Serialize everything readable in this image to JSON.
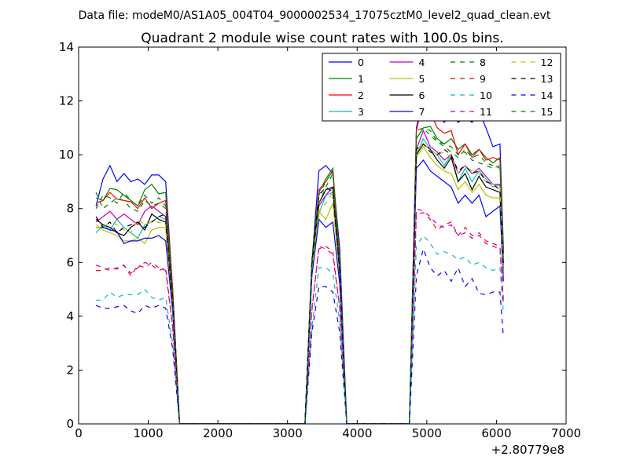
{
  "suptitle": "Data file: modeM0/AS1A05_004T04_9000002534_17075cztM0_level2_quad_clean.evt",
  "chart_data": {
    "type": "line",
    "title": "Quadrant 2 module wise count rates with 100.0s bins.",
    "xlabel": "",
    "ylabel": "",
    "xlim": [
      0,
      7000
    ],
    "ylim": [
      0,
      14
    ],
    "x_offset_label": "+2.80779e8",
    "xticks": [
      "0",
      "1000",
      "2000",
      "3000",
      "4000",
      "5000",
      "6000",
      "7000"
    ],
    "yticks": [
      "0",
      "2",
      "4",
      "6",
      "8",
      "10",
      "12",
      "14"
    ],
    "legend_position": "top-right",
    "legend_columns": 4,
    "x": [
      250,
      350,
      450,
      550,
      650,
      750,
      850,
      950,
      1050,
      1150,
      1250,
      1350,
      1450,
      1550,
      1650,
      1750,
      1850,
      1950,
      2050,
      2150,
      2250,
      2350,
      2450,
      2550,
      2650,
      2750,
      2850,
      2950,
      3050,
      3150,
      3250,
      3350,
      3450,
      3550,
      3650,
      3750,
      3850,
      3950,
      4050,
      4150,
      4250,
      4350,
      4450,
      4550,
      4650,
      4750,
      4850,
      4950,
      5050,
      5150,
      5250,
      5350,
      5450,
      5550,
      5650,
      5750,
      5850,
      5950,
      6050,
      6100
    ],
    "series": [
      {
        "name": "0",
        "color": "#0000ff",
        "dash": "solid",
        "values": [
          8.1,
          9.1,
          9.6,
          9.0,
          9.3,
          9.0,
          9.1,
          8.9,
          9.25,
          9.25,
          9.0,
          5.0,
          0,
          0,
          0,
          0,
          0,
          0,
          0,
          0,
          0,
          0,
          0,
          0,
          0,
          0,
          0,
          0,
          0,
          0,
          0,
          6.0,
          9.4,
          9.6,
          9.3,
          6.5,
          0,
          0,
          0,
          0,
          0,
          0,
          0,
          0,
          0,
          0,
          11.0,
          12.2,
          12.1,
          11.6,
          11.2,
          11.6,
          11.2,
          11.4,
          11.2,
          11.6,
          11.0,
          10.3,
          10.4,
          6.5
        ]
      },
      {
        "name": "1",
        "color": "#008000",
        "dash": "solid",
        "values": [
          8.4,
          8.3,
          8.75,
          8.7,
          8.5,
          8.3,
          8.1,
          8.7,
          8.9,
          8.55,
          8.6,
          5.0,
          0,
          0,
          0,
          0,
          0,
          0,
          0,
          0,
          0,
          0,
          0,
          0,
          0,
          0,
          0,
          0,
          0,
          0,
          0,
          6.0,
          8.6,
          9.1,
          9.5,
          6.0,
          0,
          0,
          0,
          0,
          0,
          0,
          0,
          0,
          0,
          0,
          10.6,
          11.0,
          11.05,
          10.6,
          10.4,
          10.6,
          10.2,
          10.4,
          10.0,
          10.2,
          9.9,
          9.7,
          9.9,
          6.3
        ]
      },
      {
        "name": "2",
        "color": "#ff0000",
        "dash": "solid",
        "values": [
          8.2,
          8.3,
          8.6,
          8.35,
          8.3,
          8.25,
          8.0,
          8.4,
          8.0,
          8.2,
          8.3,
          5.0,
          0,
          0,
          0,
          0,
          0,
          0,
          0,
          0,
          0,
          0,
          0,
          0,
          0,
          0,
          0,
          0,
          0,
          0,
          0,
          6.0,
          8.7,
          9.0,
          9.4,
          6.0,
          0,
          0,
          0,
          0,
          0,
          0,
          0,
          0,
          0,
          0,
          10.9,
          12.0,
          11.6,
          11.0,
          10.8,
          10.9,
          10.0,
          10.4,
          9.9,
          10.2,
          9.8,
          9.9,
          9.8,
          6.4
        ]
      },
      {
        "name": "3",
        "color": "#00bfbf",
        "dash": "solid",
        "values": [
          7.1,
          7.4,
          7.2,
          7.6,
          7.3,
          7.1,
          6.9,
          7.4,
          7.5,
          7.7,
          7.6,
          4.5,
          0,
          0,
          0,
          0,
          0,
          0,
          0,
          0,
          0,
          0,
          0,
          0,
          0,
          0,
          0,
          0,
          0,
          0,
          0,
          5.8,
          7.8,
          8.5,
          8.6,
          5.6,
          0,
          0,
          0,
          0,
          0,
          0,
          0,
          0,
          0,
          0,
          10.0,
          10.6,
          10.2,
          10.0,
          9.6,
          10.0,
          9.0,
          9.5,
          9.0,
          9.4,
          9.1,
          8.8,
          8.9,
          5.8
        ]
      },
      {
        "name": "4",
        "color": "#bf00bf",
        "dash": "solid",
        "values": [
          7.5,
          7.7,
          7.9,
          7.6,
          7.8,
          7.6,
          7.4,
          7.9,
          8.1,
          7.9,
          7.7,
          4.6,
          0,
          0,
          0,
          0,
          0,
          0,
          0,
          0,
          0,
          0,
          0,
          0,
          0,
          0,
          0,
          0,
          0,
          0,
          0,
          5.9,
          8.1,
          8.5,
          8.8,
          5.7,
          0,
          0,
          0,
          0,
          0,
          0,
          0,
          0,
          0,
          0,
          10.2,
          10.9,
          10.3,
          10.1,
          9.8,
          10.0,
          9.3,
          9.6,
          9.3,
          9.5,
          9.2,
          8.9,
          8.9,
          5.9
        ]
      },
      {
        "name": "5",
        "color": "#bfbf00",
        "dash": "solid",
        "values": [
          7.4,
          7.2,
          7.1,
          7.0,
          6.8,
          6.8,
          6.9,
          6.7,
          7.2,
          7.3,
          7.3,
          4.4,
          0,
          0,
          0,
          0,
          0,
          0,
          0,
          0,
          0,
          0,
          0,
          0,
          0,
          0,
          0,
          0,
          0,
          0,
          0,
          5.7,
          7.9,
          7.6,
          8.2,
          5.5,
          0,
          0,
          0,
          0,
          0,
          0,
          0,
          0,
          0,
          0,
          9.9,
          10.3,
          9.9,
          9.6,
          9.4,
          9.3,
          8.7,
          9.0,
          8.6,
          8.9,
          8.5,
          8.4,
          8.4,
          5.6
        ]
      },
      {
        "name": "6",
        "color": "#000000",
        "dash": "solid",
        "values": [
          7.6,
          7.4,
          7.3,
          7.1,
          7.0,
          7.3,
          7.5,
          7.2,
          7.8,
          7.6,
          7.5,
          4.5,
          0,
          0,
          0,
          0,
          0,
          0,
          0,
          0,
          0,
          0,
          0,
          0,
          0,
          0,
          0,
          0,
          0,
          0,
          0,
          5.9,
          8.2,
          8.7,
          8.8,
          5.6,
          0,
          0,
          0,
          0,
          0,
          0,
          0,
          0,
          0,
          0,
          10.0,
          10.4,
          10.2,
          9.8,
          9.5,
          9.9,
          9.0,
          9.3,
          8.7,
          9.2,
          8.8,
          8.7,
          8.6,
          5.8
        ]
      },
      {
        "name": "7",
        "color": "#0000ff",
        "dash": "solid",
        "values": [
          7.3,
          7.3,
          7.2,
          7.15,
          6.7,
          6.8,
          6.8,
          6.9,
          6.9,
          7.0,
          6.8,
          4.2,
          0,
          0,
          0,
          0,
          0,
          0,
          0,
          0,
          0,
          0,
          0,
          0,
          0,
          0,
          0,
          0,
          0,
          0,
          0,
          5.5,
          7.6,
          7.3,
          7.5,
          5.2,
          0,
          0,
          0,
          0,
          0,
          0,
          0,
          0,
          0,
          0,
          9.5,
          9.8,
          9.4,
          9.2,
          9.0,
          8.8,
          8.2,
          8.5,
          8.2,
          8.5,
          7.7,
          7.9,
          8.1,
          5.3
        ]
      },
      {
        "name": "8",
        "color": "#008000",
        "dash": "dashed",
        "values": [
          8.6,
          8.0,
          8.2,
          8.4,
          8.3,
          8.0,
          7.9,
          8.3,
          8.1,
          8.2,
          8.0,
          4.8,
          0,
          0,
          0,
          0,
          0,
          0,
          0,
          0,
          0,
          0,
          0,
          0,
          0,
          0,
          0,
          0,
          0,
          0,
          0,
          6.0,
          8.2,
          8.8,
          9.3,
          6.0,
          0,
          0,
          0,
          0,
          0,
          0,
          0,
          0,
          0,
          0,
          10.6,
          11.0,
          10.9,
          10.5,
          10.3,
          10.1,
          9.9,
          10.2,
          9.9,
          10.0,
          9.7,
          9.6,
          9.5,
          6.2
        ]
      },
      {
        "name": "9",
        "color": "#ff0000",
        "dash": "dashed",
        "values": [
          5.7,
          5.7,
          5.8,
          5.75,
          5.9,
          5.5,
          5.9,
          5.8,
          6.0,
          5.8,
          5.7,
          3.6,
          0,
          0,
          0,
          0,
          0,
          0,
          0,
          0,
          0,
          0,
          0,
          0,
          0,
          0,
          0,
          0,
          0,
          0,
          0,
          4.2,
          6.6,
          6.5,
          6.3,
          4.3,
          0,
          0,
          0,
          0,
          0,
          0,
          0,
          0,
          0,
          0,
          7.8,
          7.85,
          7.6,
          7.2,
          7.4,
          7.5,
          7.0,
          7.3,
          7.0,
          7.1,
          6.8,
          6.7,
          6.6,
          4.6
        ]
      },
      {
        "name": "10",
        "color": "#00bfbf",
        "dash": "dashed",
        "values": [
          4.6,
          4.6,
          4.9,
          4.7,
          4.8,
          4.8,
          4.8,
          5.0,
          4.7,
          4.6,
          4.7,
          3.0,
          0,
          0,
          0,
          0,
          0,
          0,
          0,
          0,
          0,
          0,
          0,
          0,
          0,
          0,
          0,
          0,
          0,
          0,
          0,
          3.6,
          5.8,
          5.8,
          5.6,
          3.8,
          0,
          0,
          0,
          0,
          0,
          0,
          0,
          0,
          0,
          0,
          6.6,
          7.0,
          6.7,
          6.3,
          6.4,
          6.3,
          6.1,
          6.2,
          5.9,
          6.0,
          5.8,
          5.7,
          5.8,
          4.1
        ]
      },
      {
        "name": "11",
        "color": "#bf00bf",
        "dash": "dashed",
        "values": [
          5.9,
          5.8,
          5.7,
          5.8,
          5.9,
          5.6,
          5.8,
          6.0,
          5.9,
          5.7,
          5.8,
          3.6,
          0,
          0,
          0,
          0,
          0,
          0,
          0,
          0,
          0,
          0,
          0,
          0,
          0,
          0,
          0,
          0,
          0,
          0,
          0,
          4.3,
          6.5,
          6.6,
          6.4,
          4.3,
          0,
          0,
          0,
          0,
          0,
          0,
          0,
          0,
          0,
          0,
          8.0,
          7.9,
          7.7,
          7.4,
          7.3,
          7.4,
          7.0,
          7.1,
          6.9,
          7.0,
          6.7,
          6.6,
          6.5,
          4.4
        ]
      },
      {
        "name": "12",
        "color": "#bfbf00",
        "dash": "dashed",
        "values": [
          7.3,
          7.3,
          7.5,
          7.4,
          7.2,
          7.1,
          7.6,
          7.4,
          7.5,
          7.5,
          7.4,
          4.5,
          0,
          0,
          0,
          0,
          0,
          0,
          0,
          0,
          0,
          0,
          0,
          0,
          0,
          0,
          0,
          0,
          0,
          0,
          0,
          5.8,
          7.9,
          8.2,
          8.6,
          5.6,
          0,
          0,
          0,
          0,
          0,
          0,
          0,
          0,
          0,
          0,
          10.1,
          10.4,
          10.2,
          10.0,
          10.1,
          9.9,
          9.3,
          9.6,
          9.4,
          9.3,
          9.0,
          8.9,
          8.8,
          5.8
        ]
      },
      {
        "name": "13",
        "color": "#000000",
        "dash": "dashed",
        "values": [
          7.7,
          7.3,
          7.5,
          7.1,
          7.3,
          7.4,
          7.5,
          7.3,
          7.5,
          7.7,
          7.8,
          4.6,
          0,
          0,
          0,
          0,
          0,
          0,
          0,
          0,
          0,
          0,
          0,
          0,
          0,
          0,
          0,
          0,
          0,
          0,
          0,
          6.0,
          8.5,
          8.8,
          8.6,
          5.7,
          0,
          0,
          0,
          0,
          0,
          0,
          0,
          0,
          0,
          0,
          10.2,
          10.4,
          10.1,
          10.0,
          10.2,
          10.0,
          9.4,
          9.6,
          9.3,
          9.4,
          9.0,
          8.9,
          8.7,
          5.9
        ]
      },
      {
        "name": "14",
        "color": "#0000ff",
        "dash": "dashed",
        "values": [
          4.4,
          4.3,
          4.3,
          4.35,
          4.4,
          4.2,
          4.1,
          4.4,
          4.3,
          4.4,
          4.3,
          2.8,
          0,
          0,
          0,
          0,
          0,
          0,
          0,
          0,
          0,
          0,
          0,
          0,
          0,
          0,
          0,
          0,
          0,
          0,
          0,
          3.4,
          5.1,
          5.1,
          4.9,
          3.4,
          0,
          0,
          0,
          0,
          0,
          0,
          0,
          0,
          0,
          0,
          5.5,
          6.5,
          5.8,
          5.5,
          5.7,
          5.3,
          5.8,
          5.1,
          5.4,
          4.85,
          4.8,
          4.9,
          4.9,
          3.2
        ]
      },
      {
        "name": "15",
        "color": "#008000",
        "dash": "dashed",
        "values": [
          8.0,
          8.5,
          8.4,
          8.2,
          8.6,
          8.3,
          8.1,
          8.5,
          8.2,
          8.4,
          8.1,
          4.9,
          0,
          0,
          0,
          0,
          0,
          0,
          0,
          0,
          0,
          0,
          0,
          0,
          0,
          0,
          0,
          0,
          0,
          0,
          0,
          6.2,
          8.5,
          9.0,
          9.4,
          6.1,
          0,
          0,
          0,
          0,
          0,
          0,
          0,
          0,
          0,
          0,
          10.9,
          11.0,
          10.7,
          10.5,
          10.4,
          10.3,
          10.0,
          10.1,
          9.8,
          9.7,
          9.6,
          9.5,
          9.6,
          6.1
        ]
      }
    ]
  }
}
